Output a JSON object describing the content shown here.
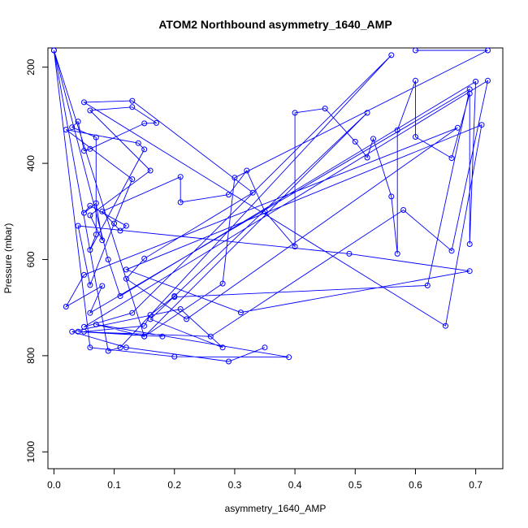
{
  "chart_data": {
    "type": "line",
    "title": "ATOM2 Northbound asymmetry_1640_AMP",
    "xlabel": "asymmetry_1640_AMP",
    "ylabel": "Pressure (mbar)",
    "xlim": [
      -0.01,
      0.745
    ],
    "ylim": [
      1035,
      160
    ],
    "y_reversed": true,
    "x_ticks": [
      0.0,
      0.1,
      0.2,
      0.3,
      0.4,
      0.5,
      0.6,
      0.7
    ],
    "x_tick_labels": [
      "0.0",
      "0.1",
      "0.2",
      "0.3",
      "0.4",
      "0.5",
      "0.6",
      "0.7"
    ],
    "y_ticks": [
      200,
      400,
      600,
      800,
      1000
    ],
    "y_tick_labels": [
      "200",
      "400",
      "600",
      "800",
      "1000"
    ],
    "grid": false,
    "series_color": "#0000ff",
    "points": [
      {
        "x": 0.35,
        "y": 783
      },
      {
        "x": 0.29,
        "y": 812
      },
      {
        "x": 0.12,
        "y": 783
      },
      {
        "x": 0.03,
        "y": 750
      },
      {
        "x": 0.21,
        "y": 703
      },
      {
        "x": 0.28,
        "y": 783
      },
      {
        "x": 0.16,
        "y": 724
      },
      {
        "x": 0.52,
        "y": 295
      },
      {
        "x": 0.15,
        "y": 760
      },
      {
        "x": 0.07,
        "y": 735
      },
      {
        "x": 0.39,
        "y": 803
      },
      {
        "x": 0.2,
        "y": 802
      },
      {
        "x": 0.06,
        "y": 783
      },
      {
        "x": 0.0,
        "y": 165
      },
      {
        "x": 0.09,
        "y": 790
      },
      {
        "x": 0.11,
        "y": 783
      },
      {
        "x": 0.56,
        "y": 175
      },
      {
        "x": 0.13,
        "y": 711
      },
      {
        "x": 0.05,
        "y": 740
      },
      {
        "x": 0.72,
        "y": 228
      },
      {
        "x": 0.66,
        "y": 582
      },
      {
        "x": 0.58,
        "y": 497
      },
      {
        "x": 0.26,
        "y": 760
      },
      {
        "x": 0.04,
        "y": 750
      },
      {
        "x": 0.18,
        "y": 760
      },
      {
        "x": 0.05,
        "y": 750
      },
      {
        "x": 0.15,
        "y": 738
      },
      {
        "x": 0.16,
        "y": 715
      },
      {
        "x": 0.2,
        "y": 676
      },
      {
        "x": 0.2,
        "y": 678
      },
      {
        "x": 0.62,
        "y": 654
      },
      {
        "x": 0.69,
        "y": 246
      },
      {
        "x": 0.06,
        "y": 711
      },
      {
        "x": 0.08,
        "y": 655
      },
      {
        "x": 0.02,
        "y": 698
      },
      {
        "x": 0.05,
        "y": 632
      },
      {
        "x": 0.67,
        "y": 326
      },
      {
        "x": 0.22,
        "y": 724
      },
      {
        "x": 0.12,
        "y": 640
      },
      {
        "x": 0.15,
        "y": 598
      },
      {
        "x": 0.33,
        "y": 461
      },
      {
        "x": 0.13,
        "y": 270
      },
      {
        "x": 0.05,
        "y": 273
      },
      {
        "x": 0.65,
        "y": 738
      },
      {
        "x": 0.71,
        "y": 320
      },
      {
        "x": 0.12,
        "y": 621
      },
      {
        "x": 0.31,
        "y": 710
      },
      {
        "x": 0.69,
        "y": 624
      },
      {
        "x": 0.49,
        "y": 588
      },
      {
        "x": 0.04,
        "y": 530
      },
      {
        "x": 0.06,
        "y": 653
      },
      {
        "x": 0.1,
        "y": 525
      },
      {
        "x": 0.13,
        "y": 433
      },
      {
        "x": 0.02,
        "y": 330
      },
      {
        "x": 0.14,
        "y": 358
      },
      {
        "x": 0.15,
        "y": 371
      },
      {
        "x": 0.06,
        "y": 580
      },
      {
        "x": 0.07,
        "y": 548
      },
      {
        "x": 0.07,
        "y": 346
      },
      {
        "x": 0.03,
        "y": 325
      },
      {
        "x": 0.04,
        "y": 313
      },
      {
        "x": 0.05,
        "y": 374
      },
      {
        "x": 0.06,
        "y": 370
      },
      {
        "x": 0.15,
        "y": 317
      },
      {
        "x": 0.17,
        "y": 316
      },
      {
        "x": 0.13,
        "y": 283
      },
      {
        "x": 0.06,
        "y": 290
      },
      {
        "x": 0.16,
        "y": 415
      },
      {
        "x": 0.06,
        "y": 508
      },
      {
        "x": 0.08,
        "y": 560
      },
      {
        "x": 0.07,
        "y": 483
      },
      {
        "x": 0.05,
        "y": 503
      },
      {
        "x": 0.06,
        "y": 488
      },
      {
        "x": 0.12,
        "y": 530
      },
      {
        "x": 0.11,
        "y": 540
      },
      {
        "x": 0.08,
        "y": 500
      },
      {
        "x": 0.21,
        "y": 428
      },
      {
        "x": 0.21,
        "y": 481
      },
      {
        "x": 0.29,
        "y": 465
      },
      {
        "x": 0.32,
        "y": 415
      },
      {
        "x": 0.35,
        "y": 500
      },
      {
        "x": 0.4,
        "y": 573
      },
      {
        "x": 0.4,
        "y": 295
      },
      {
        "x": 0.45,
        "y": 286
      },
      {
        "x": 0.5,
        "y": 355
      },
      {
        "x": 0.52,
        "y": 388
      },
      {
        "x": 0.53,
        "y": 349
      },
      {
        "x": 0.56,
        "y": 469
      },
      {
        "x": 0.57,
        "y": 588
      },
      {
        "x": 0.57,
        "y": 331
      },
      {
        "x": 0.6,
        "y": 228
      },
      {
        "x": 0.6,
        "y": 345
      },
      {
        "x": 0.66,
        "y": 389
      },
      {
        "x": 0.69,
        "y": 255
      },
      {
        "x": 0.69,
        "y": 568
      },
      {
        "x": 0.7,
        "y": 230
      },
      {
        "x": 0.11,
        "y": 676
      },
      {
        "x": 0.09,
        "y": 600
      },
      {
        "x": 0.0,
        "y": 165
      },
      {
        "x": 0.15,
        "y": 760
      },
      {
        "x": 0.28,
        "y": 650
      },
      {
        "x": 0.3,
        "y": 430
      },
      {
        "x": 0.72,
        "y": 165
      },
      {
        "x": 0.6,
        "y": 165
      }
    ]
  }
}
